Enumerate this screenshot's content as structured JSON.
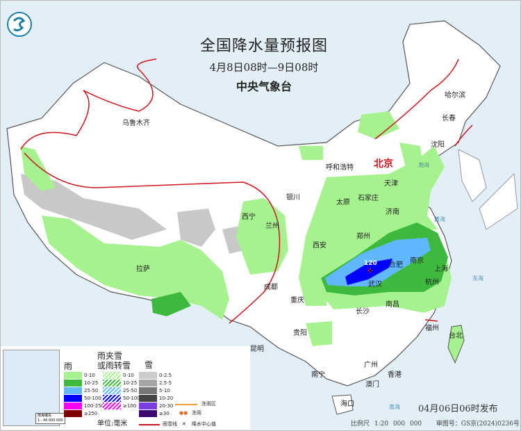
{
  "header": {
    "title": "全国降水量预报图",
    "period": "4月8日08时—9日08时",
    "issuer": "中央气象台",
    "logo": "cma-logo"
  },
  "cities": [
    "乌鲁木齐",
    "哈尔滨",
    "长春",
    "沈阳",
    "呼和浩特",
    "北京",
    "天津",
    "银川",
    "太原",
    "石家庄",
    "济南",
    "西宁",
    "兰州",
    "郑州",
    "西安",
    "合肥",
    "南京",
    "上海",
    "武汉",
    "成都",
    "杭州",
    "拉萨",
    "重庆",
    "长沙",
    "南昌",
    "福州",
    "台北",
    "贵阳",
    "昆明",
    "南宁",
    "广州",
    "香港",
    "澳门",
    "海口"
  ],
  "seas": [
    "渤海",
    "黄海",
    "东海",
    "南海"
  ],
  "precip_center_value": "120",
  "legend": {
    "rain_title": "雨",
    "mix_title": "雨夹雪\n或雨转雪",
    "snow_title": "雪",
    "rain": [
      {
        "label": "0-10",
        "color": "#a6f28f"
      },
      {
        "label": "10-25",
        "color": "#3dba3d"
      },
      {
        "label": "25-50",
        "color": "#61b8ff"
      },
      {
        "label": "50-100",
        "color": "#0000fe"
      },
      {
        "label": "100-250",
        "color": "#fa00fa"
      },
      {
        "label": "≥250",
        "color": "#800000"
      }
    ],
    "mix": [
      {
        "label": "0-10",
        "color": "#a6f28f"
      },
      {
        "label": "10-25",
        "color": "#3dba3d"
      },
      {
        "label": "25-50",
        "color": "#61b8ff"
      },
      {
        "label": "50-100",
        "color": "#0000fe"
      },
      {
        "label": "≥100",
        "color": "#fa00fa"
      }
    ],
    "snow": [
      {
        "label": "0-2.5",
        "color": "#cccccc"
      },
      {
        "label": "2.5-5",
        "color": "#a6a6a6"
      },
      {
        "label": "5-10",
        "color": "#777777"
      },
      {
        "label": "10-20",
        "color": "#444444"
      },
      {
        "label": "20-30",
        "color": "#7d3ee0"
      },
      {
        "label": "≥30",
        "color": "#3c0a6e"
      }
    ],
    "unit": "单位:毫米",
    "freezing_rain_zone": "冻雨区",
    "freezing_rain": "冻雨",
    "rain_snow_line": "雨雪线",
    "precip_center": "降水中心值",
    "inset_caption": "南海诸岛\n1 : 40 000 000"
  },
  "footer": {
    "issued": "04月06日06时发布",
    "scale": "比例尺 1:20 000 000",
    "review_no": "审图号：GS京(2024)0236号"
  }
}
